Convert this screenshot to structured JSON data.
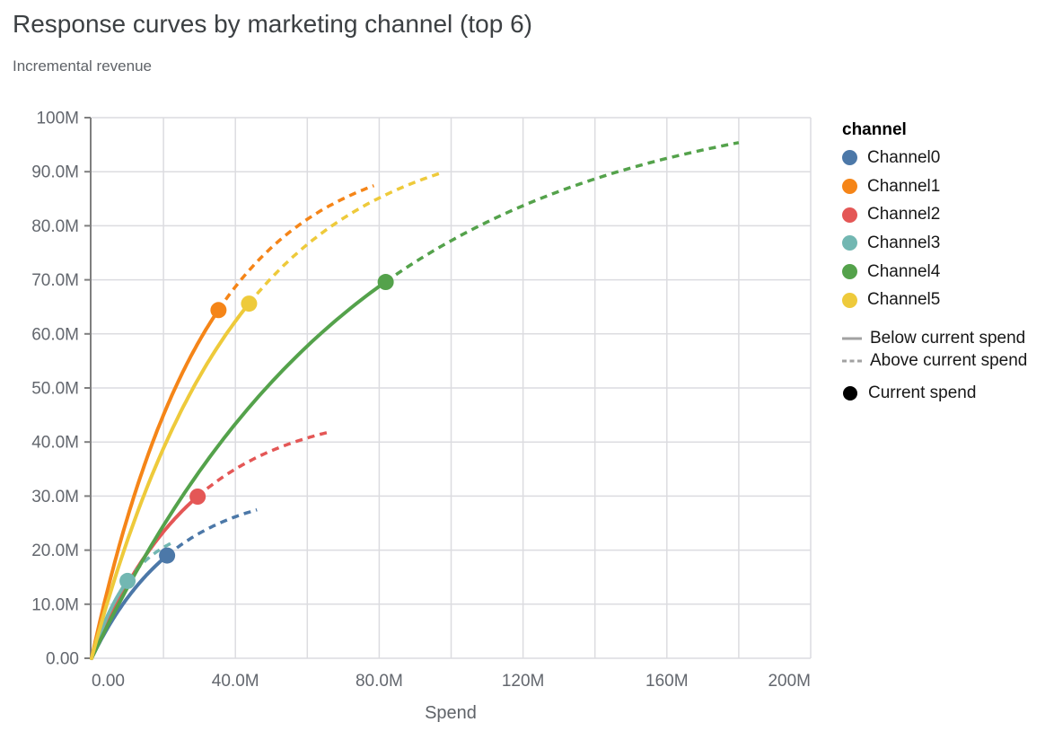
{
  "title": "Response curves by marketing channel (top 6)",
  "subtitle": "Incremental revenue",
  "legend": {
    "title": "channel",
    "channels": [
      {
        "label": "Channel0",
        "color": "#4c78a8"
      },
      {
        "label": "Channel1",
        "color": "#f58518"
      },
      {
        "label": "Channel2",
        "color": "#e45756"
      },
      {
        "label": "Channel3",
        "color": "#72b7b2"
      },
      {
        "label": "Channel4",
        "color": "#54a24b"
      },
      {
        "label": "Channel5",
        "color": "#eeca3b"
      }
    ],
    "line_styles": [
      {
        "label": "Below current spend",
        "dashed": false
      },
      {
        "label": "Above current spend",
        "dashed": true
      }
    ],
    "point": {
      "label": "Current spend",
      "color": "#000000"
    },
    "line_symbol_color": "#a2a2a2"
  },
  "chart_data": {
    "type": "line",
    "title": "Response curves by marketing channel (top 6)",
    "subtitle": "Incremental revenue",
    "xlabel": "Spend",
    "ylabel": "Incremental revenue",
    "units_suffix": "M",
    "x_max_m": 200,
    "y_max_m": 100,
    "x_gridline_step_m": 20,
    "y_gridline_step_m": 10,
    "x_tick_values_m": [
      0,
      40,
      80,
      120,
      160,
      200
    ],
    "x_ticks": [
      "0.00",
      "40.0M",
      "80.0M",
      "120M",
      "160M",
      "200M"
    ],
    "y_tick_values_m": [
      0,
      10,
      20,
      30,
      40,
      50,
      60,
      70,
      80,
      90,
      100
    ],
    "y_ticks": [
      "0.00",
      "10.0M",
      "20.0M",
      "30.0M",
      "40.0M",
      "50.0M",
      "60.0M",
      "70.0M",
      "80.0M",
      "90.0M",
      "100M"
    ],
    "grid": true,
    "legend_position": "right",
    "encoding_notes": {
      "solid_line": "Below current spend",
      "dashed_line": "Above current spend",
      "point": "Current spend"
    },
    "series": [
      {
        "name": "Channel0",
        "color": "#4c78a8",
        "current_spend_m": 21.0,
        "current_revenue_m": 19.0,
        "max_spend_m": 46.0,
        "max_revenue_m": 27.5,
        "curve": {
          "model": "a*(1-exp(-b*x))",
          "a_m": 31.8,
          "b_per_m": 0.0433
        }
      },
      {
        "name": "Channel1",
        "color": "#f58518",
        "current_spend_m": 35.3,
        "current_revenue_m": 64.4,
        "max_spend_m": 78.5,
        "max_revenue_m": 87.5,
        "curve": {
          "model": "a*(1-exp(-b*x))",
          "a_m": 95.1,
          "b_per_m": 0.03206
        }
      },
      {
        "name": "Channel2",
        "color": "#e45756",
        "current_spend_m": 29.5,
        "current_revenue_m": 29.9,
        "max_spend_m": 65.5,
        "max_revenue_m": 41.7,
        "curve": {
          "model": "a*(1-exp(-b*x))",
          "a_m": 46.4,
          "b_per_m": 0.0351
        }
      },
      {
        "name": "Channel3",
        "color": "#72b7b2",
        "current_spend_m": 10.0,
        "current_revenue_m": 14.3,
        "max_spend_m": 22.0,
        "max_revenue_m": 21.2,
        "curve": {
          "model": "a*(1-exp(-b*x))",
          "a_m": 25.2,
          "b_per_m": 0.084
        }
      },
      {
        "name": "Channel4",
        "color": "#54a24b",
        "current_spend_m": 81.8,
        "current_revenue_m": 69.6,
        "max_spend_m": 180.0,
        "max_revenue_m": 95.3,
        "curve": {
          "model": "a*(1-exp(-b*x))",
          "a_m": 104.9,
          "b_per_m": 0.01333
        }
      },
      {
        "name": "Channel5",
        "color": "#eeca3b",
        "current_spend_m": 43.8,
        "current_revenue_m": 65.6,
        "max_spend_m": 96.8,
        "max_revenue_m": 89.8,
        "curve": {
          "model": "a*(1-exp(-b*x))",
          "a_m": 98.3,
          "b_per_m": 0.02514
        }
      }
    ]
  },
  "style": {
    "grid_color": "#dcdce0",
    "axis_domain_color": "#7f7f7f",
    "tick_label_color": "#63676e"
  }
}
